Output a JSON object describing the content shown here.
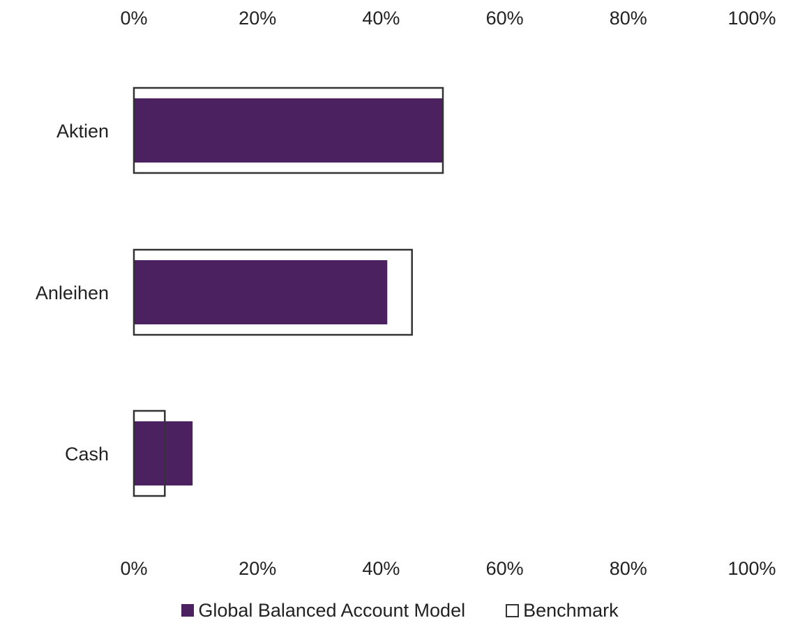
{
  "chart_data": {
    "type": "bar",
    "orientation": "horizontal",
    "categories": [
      "Aktien",
      "Anleihen",
      "Cash"
    ],
    "series": [
      {
        "name": "Global Balanced Account Model",
        "values": [
          50,
          41,
          9.5
        ],
        "color": "#4B2160",
        "style": "filled"
      },
      {
        "name": "Benchmark",
        "values": [
          50,
          45,
          5
        ],
        "color": "#333333",
        "style": "outline"
      }
    ],
    "xlim": [
      0,
      100
    ],
    "x_ticks": [
      "0%",
      "20%",
      "40%",
      "60%",
      "80%",
      "100%"
    ],
    "x_axis_position": "top and bottom",
    "grid": false,
    "legend_position": "bottom"
  }
}
